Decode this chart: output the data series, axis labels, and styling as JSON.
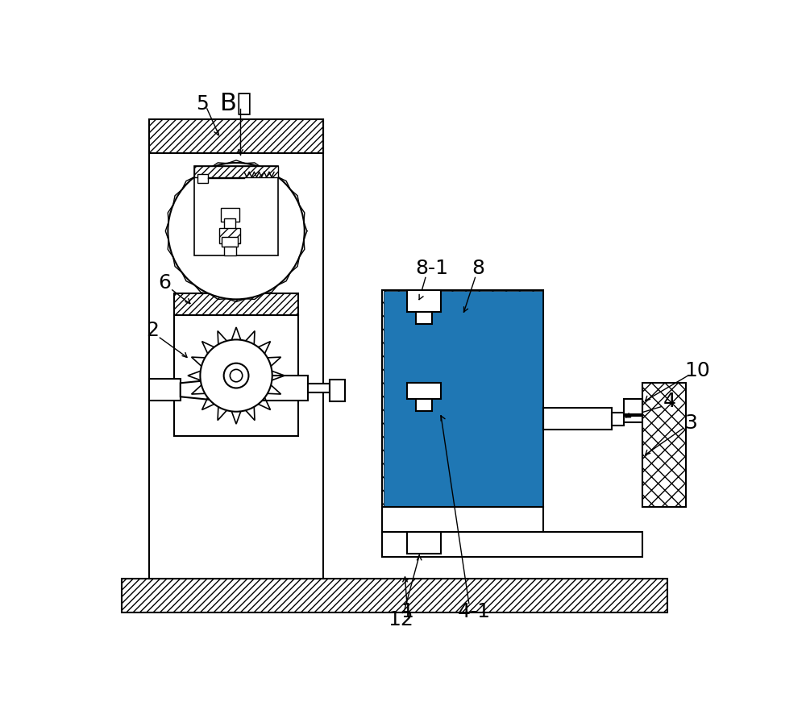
{
  "bg_color": "#ffffff",
  "line_color": "#000000",
  "figsize": [
    10.0,
    8.81
  ],
  "dpi": 100,
  "xlim": [
    0,
    1000
  ],
  "ylim": [
    0,
    881
  ],
  "labels_fs": 18,
  "B_label_fs": 22
}
